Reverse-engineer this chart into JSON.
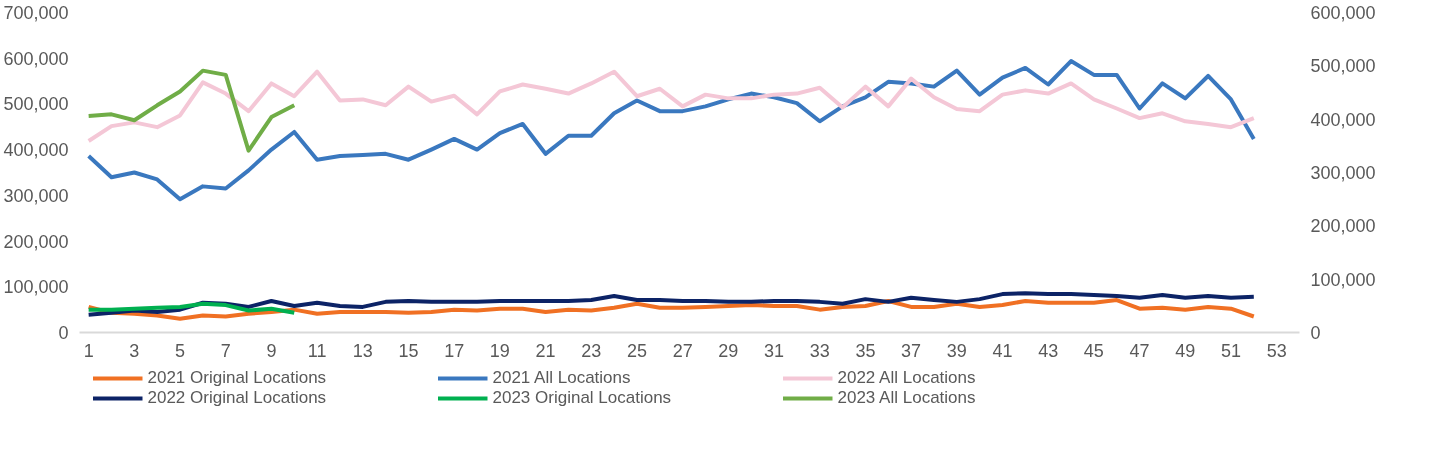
{
  "chart_data": {
    "type": "line",
    "x": [
      1,
      2,
      3,
      4,
      5,
      6,
      7,
      8,
      9,
      10,
      11,
      12,
      13,
      14,
      15,
      16,
      17,
      18,
      19,
      20,
      21,
      22,
      23,
      24,
      25,
      26,
      27,
      28,
      29,
      30,
      31,
      32,
      33,
      34,
      35,
      36,
      37,
      38,
      39,
      40,
      41,
      42,
      43,
      44,
      45,
      46,
      47,
      48,
      49,
      50,
      51,
      52
    ],
    "xlim": [
      0.6,
      54
    ],
    "xticks": [
      1,
      3,
      5,
      7,
      9,
      11,
      13,
      15,
      17,
      19,
      21,
      23,
      25,
      27,
      29,
      31,
      33,
      35,
      37,
      39,
      41,
      43,
      45,
      47,
      49,
      51,
      53
    ],
    "ylim": [
      0,
      700000
    ],
    "yticks": [
      {
        "value": 0,
        "label": "0"
      },
      {
        "value": 100000,
        "label": "100,000"
      },
      {
        "value": 200000,
        "label": "200,000"
      },
      {
        "value": 300000,
        "label": "300,000"
      },
      {
        "value": 400000,
        "label": "400,000"
      },
      {
        "value": 500000,
        "label": "500,000"
      },
      {
        "value": 600000,
        "label": "600,000"
      },
      {
        "value": 700000,
        "label": "700,000"
      }
    ],
    "y2lim": [
      0,
      600000
    ],
    "y2ticks": [
      {
        "value": 0,
        "label": "0"
      },
      {
        "value": 100000,
        "label": "100,000"
      },
      {
        "value": 200000,
        "label": "200,000"
      },
      {
        "value": 300000,
        "label": "300,000"
      },
      {
        "value": 400000,
        "label": "400,000"
      },
      {
        "value": 500000,
        "label": "500,000"
      },
      {
        "value": 600000,
        "label": "600,000"
      }
    ],
    "grid": false,
    "legend": "bottom",
    "marker": "none",
    "line_style": "solid",
    "series": [
      {
        "name": "2021 Original Locations",
        "color": "#f07023",
        "values": [
          56000,
          43000,
          41000,
          37000,
          30000,
          37000,
          35000,
          41000,
          45000,
          50000,
          41000,
          45000,
          45000,
          45000,
          43000,
          45000,
          50000,
          48000,
          52000,
          52000,
          45000,
          50000,
          48000,
          54000,
          63000,
          54000,
          54000,
          56000,
          58000,
          60000,
          58000,
          58000,
          50000,
          56000,
          58000,
          69000,
          56000,
          56000,
          63000,
          56000,
          60000,
          69000,
          65000,
          65000,
          65000,
          71000,
          52000,
          54000,
          50000,
          56000,
          52000,
          35000
        ]
      },
      {
        "name": "2021 All Locations",
        "color": "#3a78bf",
        "axis": "y2",
        "values": [
          331000,
          291000,
          300000,
          287000,
          250000,
          274000,
          270000,
          304000,
          343000,
          376000,
          324000,
          331000,
          333000,
          335000,
          324000,
          343000,
          363000,
          343000,
          374000,
          391000,
          335000,
          369000,
          369000,
          411000,
          435000,
          415000,
          415000,
          424000,
          437000,
          448000,
          441000,
          430000,
          396000,
          424000,
          441000,
          470000,
          467000,
          461000,
          491000,
          446000,
          478000,
          496000,
          465000,
          509000,
          483000,
          483000,
          420000,
          467000,
          439000,
          481000,
          437000,
          363000
        ]
      },
      {
        "name": "2022 All Locations",
        "color": "#f4c7d6",
        "axis": "y2",
        "values": [
          359000,
          387000,
          394000,
          385000,
          407000,
          469000,
          448000,
          415000,
          467000,
          443000,
          489000,
          435000,
          437000,
          426000,
          461000,
          433000,
          444000,
          409000,
          452000,
          465000,
          457000,
          448000,
          467000,
          489000,
          443000,
          457000,
          424000,
          446000,
          439000,
          439000,
          446000,
          448000,
          459000,
          422000,
          461000,
          424000,
          476000,
          441000,
          419000,
          415000,
          446000,
          454000,
          448000,
          467000,
          437000,
          420000,
          402000,
          411000,
          396000,
          391000,
          385000,
          402000
        ]
      },
      {
        "name": "2022 Original Locations",
        "color": "#0c2366",
        "values": [
          39000,
          43000,
          48000,
          45000,
          50000,
          65000,
          63000,
          56000,
          69000,
          58000,
          65000,
          58000,
          56000,
          67000,
          69000,
          67000,
          67000,
          67000,
          69000,
          69000,
          69000,
          69000,
          71000,
          80000,
          71000,
          71000,
          69000,
          69000,
          67000,
          67000,
          69000,
          69000,
          67000,
          63000,
          73000,
          67000,
          76000,
          71000,
          67000,
          73000,
          84000,
          86000,
          84000,
          84000,
          82000,
          80000,
          76000,
          82000,
          76000,
          80000,
          76000,
          78000
        ]
      },
      {
        "name": "2023 Original Locations",
        "color": "#00b050",
        "values": [
          50000,
          50000,
          52000,
          54000,
          56000,
          63000,
          60000,
          48000,
          52000,
          43000,
          null,
          null,
          null,
          null,
          null,
          null,
          null,
          null,
          null,
          null,
          null,
          null,
          null,
          null,
          null,
          null,
          null,
          null,
          null,
          null,
          null,
          null,
          null,
          null,
          null,
          null,
          null,
          null,
          null,
          null,
          null,
          null,
          null,
          null,
          null,
          null,
          null,
          null,
          null,
          null,
          null,
          null
        ]
      },
      {
        "name": "2023 All Locations",
        "color": "#70ad47",
        "axis": "y2",
        "values": [
          406000,
          409000,
          398000,
          426000,
          452000,
          491000,
          483000,
          341000,
          404000,
          426000,
          null,
          null,
          null,
          null,
          null,
          null,
          null,
          null,
          null,
          null,
          null,
          null,
          null,
          null,
          null,
          null,
          null,
          null,
          null,
          null,
          null,
          null,
          null,
          null,
          null,
          null,
          null,
          null,
          null,
          null,
          null,
          null,
          null,
          null,
          null,
          null,
          null,
          null,
          null,
          null,
          null,
          null
        ]
      }
    ]
  }
}
